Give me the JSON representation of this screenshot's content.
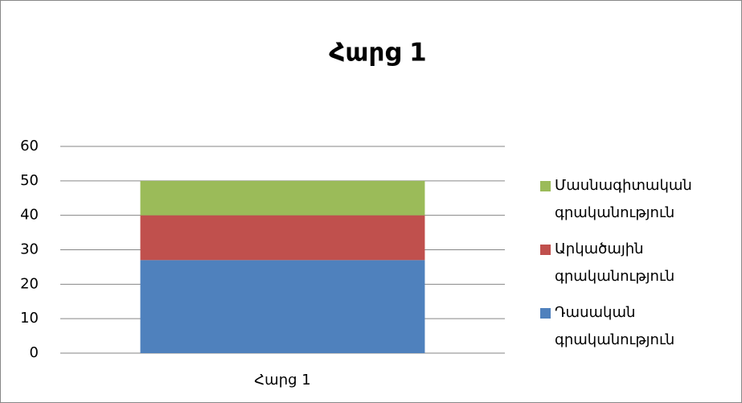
{
  "chart_data": {
    "type": "stacked_bar",
    "title": "Հարց 1",
    "categories": [
      "Հարց 1"
    ],
    "series": [
      {
        "name": "Դասական գրականություն",
        "color": "#4f81bd",
        "values": [
          27
        ]
      },
      {
        "name": "Արկածային գրականություն",
        "color": "#c0504d",
        "values": [
          13
        ]
      },
      {
        "name": "Մասնագիտական գրականություն",
        "color": "#9bbb59",
        "values": [
          10
        ]
      }
    ],
    "ylim": [
      0,
      60
    ],
    "yticks": [
      0,
      10,
      20,
      30,
      40,
      50,
      60
    ],
    "grid": true,
    "legend": "right"
  }
}
